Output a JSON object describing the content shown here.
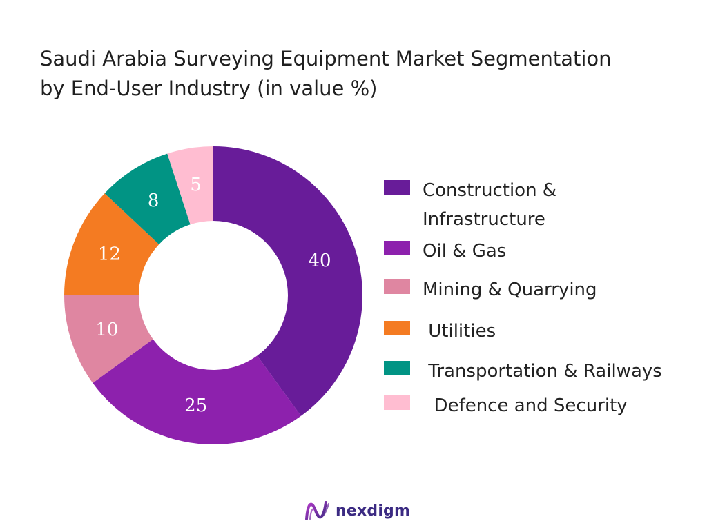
{
  "chart_data": {
    "type": "pie",
    "style": "donut",
    "title": "Saudi Arabia Surveying Equipment Market Segmentation by End-User Industry (in value %)",
    "title_lines": [
      "Saudi Arabia Surveying Equipment Market Segmentation",
      "by End-User Industry (in value %)"
    ],
    "legend_position": "right",
    "slices": [
      {
        "label": "Construction & Infrastructure",
        "label_lines": [
          "Construction &",
          "Infrastructure"
        ],
        "value": 40,
        "value_label": "40",
        "color": "#681c99"
      },
      {
        "label": "Oil & Gas",
        "label_lines": [
          "Oil & Gas"
        ],
        "value": 25,
        "value_label": "25",
        "color": "#8d21ad"
      },
      {
        "label": "Mining & Quarrying",
        "label_lines": [
          "Mining & Quarrying"
        ],
        "value": 10,
        "value_label": "10",
        "color": "#df86a1"
      },
      {
        "label": "Utilities",
        "label_lines": [
          " Utilities"
        ],
        "value": 12,
        "value_label": "12",
        "color": "#f47b22"
      },
      {
        "label": "Transportation & Railways",
        "label_lines": [
          " Transportation & Railways"
        ],
        "value": 8,
        "value_label": "8",
        "color": "#019484"
      },
      {
        "label": "Defence and Security",
        "label_lines": [
          "  Defence and Security"
        ],
        "value": 5,
        "value_label": "5",
        "color": "#ffbdd1"
      }
    ]
  },
  "brand": {
    "name": "nexdigm",
    "icon": "nexdigm-wave-logo-icon"
  }
}
